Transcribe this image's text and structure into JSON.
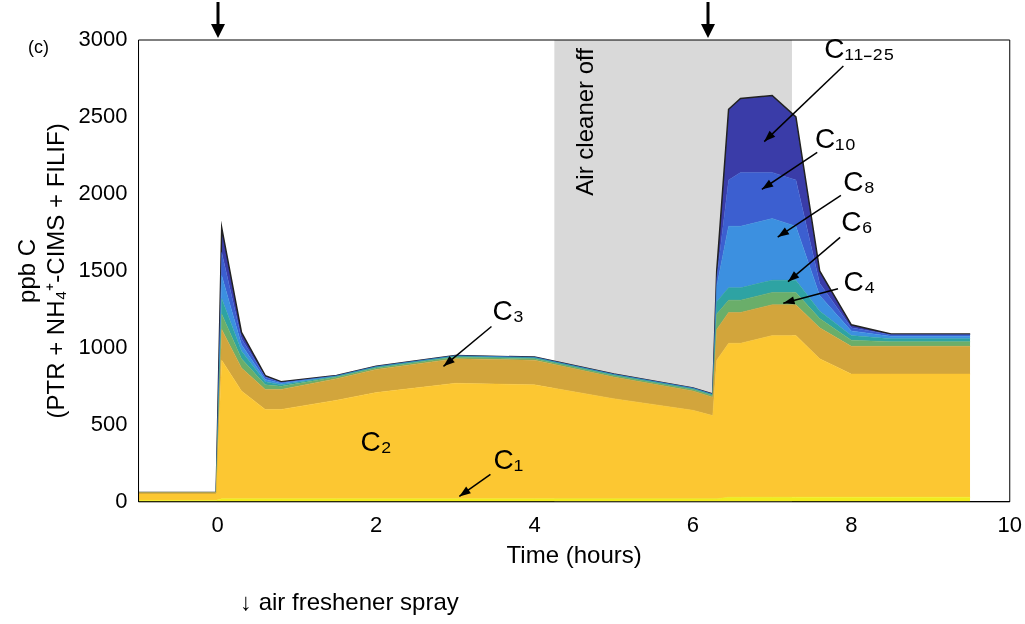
{
  "chart_data": {
    "type": "area",
    "stacked": true,
    "xlabel": "Time (hours)",
    "ylabel": "ppb C\n(PTR + NH₄⁺-CIMS + FILIF)",
    "x": [
      -1,
      -0.02,
      0.05,
      0.3,
      0.6,
      0.8,
      1.5,
      2,
      3,
      4,
      5,
      6,
      6.25,
      6.3,
      6.45,
      6.6,
      7,
      7.3,
      7.6,
      8,
      8.5,
      9.5
    ],
    "series": [
      {
        "name": "C₁",
        "color": "#f0ec1e",
        "values": [
          10,
          10,
          20,
          20,
          20,
          20,
          20,
          20,
          20,
          20,
          20,
          20,
          20,
          20,
          30,
          30,
          30,
          30,
          30,
          30,
          30,
          30
        ]
      },
      {
        "name": "C₂",
        "color": "#fcc732",
        "values": [
          40,
          40,
          900,
          700,
          580,
          580,
          640,
          690,
          750,
          740,
          650,
          575,
          540,
          900,
          1000,
          1000,
          1050,
          1050,
          900,
          800,
          800,
          800
        ]
      },
      {
        "name": "C₃",
        "color": "#d2a53c",
        "values": [
          10,
          10,
          200,
          150,
          130,
          130,
          140,
          150,
          160,
          160,
          140,
          125,
          120,
          200,
          200,
          200,
          200,
          200,
          200,
          180,
          180,
          180
        ]
      },
      {
        "name": "C₄",
        "color": "#6aae6a",
        "values": [
          0,
          0,
          100,
          60,
          30,
          20,
          10,
          10,
          10,
          10,
          10,
          10,
          10,
          100,
          80,
          80,
          80,
          80,
          60,
          40,
          30,
          30
        ]
      },
      {
        "name": "C₆",
        "color": "#2ea3a3",
        "values": [
          0,
          0,
          100,
          50,
          20,
          10,
          5,
          5,
          5,
          5,
          5,
          5,
          5,
          80,
          80,
          80,
          80,
          80,
          50,
          30,
          20,
          20
        ]
      },
      {
        "name": "C₈",
        "color": "#3c90e0",
        "values": [
          0,
          0,
          150,
          40,
          15,
          10,
          3,
          3,
          3,
          3,
          3,
          3,
          3,
          100,
          400,
          400,
          400,
          350,
          100,
          30,
          15,
          15
        ]
      },
      {
        "name": "C₁₀",
        "color": "#3c5fd0",
        "values": [
          0,
          0,
          150,
          40,
          15,
          5,
          1,
          1,
          1,
          1,
          1,
          1,
          1,
          50,
          300,
          350,
          300,
          300,
          80,
          20,
          10,
          10
        ]
      },
      {
        "name": "C₁₁₋₂₅",
        "color": "#3a3ca8",
        "values": [
          0,
          0,
          160,
          40,
          10,
          5,
          1,
          1,
          1,
          1,
          1,
          1,
          1,
          50,
          460,
          480,
          500,
          410,
          80,
          20,
          5,
          5
        ]
      }
    ],
    "xlim": [
      -1,
      10
    ],
    "xticks": [
      0,
      2,
      4,
      6,
      8,
      10
    ],
    "ylim": [
      0,
      3000
    ],
    "yticks": [
      0,
      500,
      1000,
      1500,
      2000,
      2500,
      3000
    ],
    "bands": [
      {
        "axis": "x",
        "from": 4.25,
        "to": 7.25,
        "label": "Air cleaner off",
        "color": "#d9d9d9"
      }
    ],
    "grid": false,
    "legend": false,
    "annotations": [
      "(c)",
      "↓ air freshener spray"
    ]
  }
}
